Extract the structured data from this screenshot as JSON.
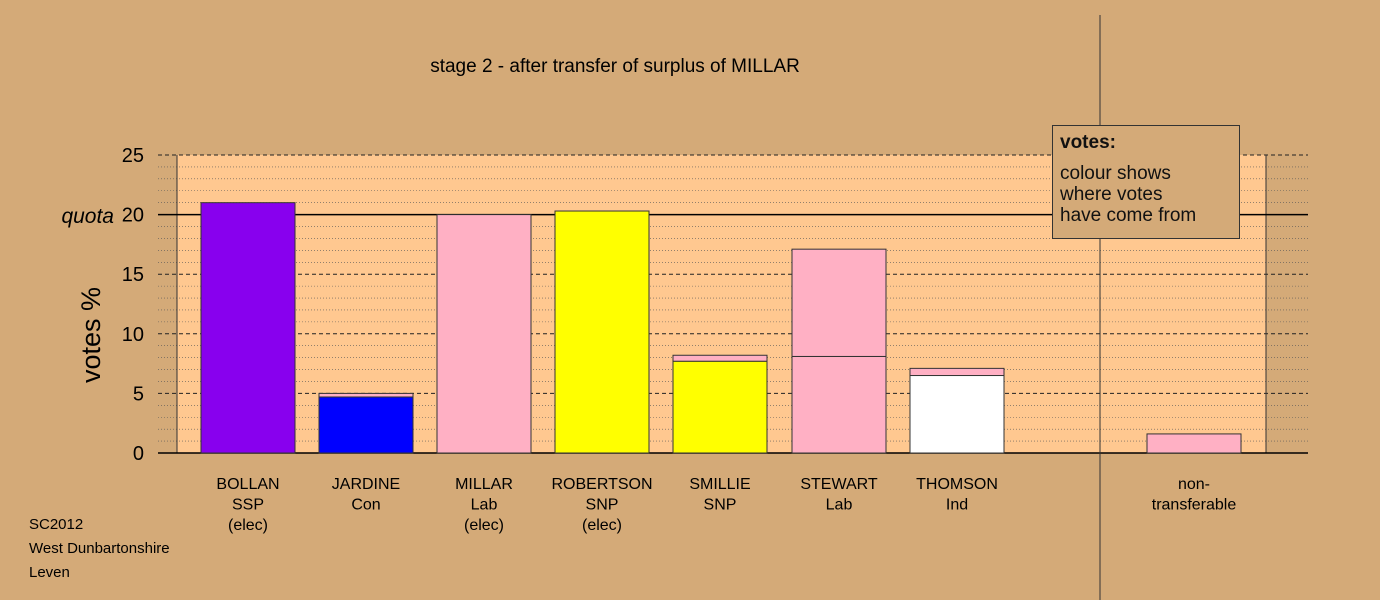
{
  "chart_data": {
    "type": "bar",
    "title": "stage 2 - after transfer of surplus of MILLAR",
    "ylabel": "votes %",
    "ylim": [
      0,
      25
    ],
    "yticks": [
      0,
      5,
      10,
      15,
      20,
      25
    ],
    "quota": 20,
    "quota_label": "quota",
    "candidates": [
      {
        "name": "BOLLAN",
        "party": "SSP",
        "status": "(elec)",
        "segments": [
          {
            "value": 21.0,
            "color": "#8800ee"
          }
        ]
      },
      {
        "name": "JARDINE",
        "party": "Con",
        "status": "",
        "segments": [
          {
            "value": 4.7,
            "color": "#0000ff"
          },
          {
            "value": 0.3,
            "color": "#ffb0c4"
          }
        ]
      },
      {
        "name": "MILLAR",
        "party": "Lab",
        "status": "(elec)",
        "segments": [
          {
            "value": 20.0,
            "color": "#ffb0c4"
          }
        ]
      },
      {
        "name": "ROBERTSON",
        "party": "SNP",
        "status": "(elec)",
        "segments": [
          {
            "value": 20.3,
            "color": "#ffff00"
          }
        ]
      },
      {
        "name": "SMILLIE",
        "party": "SNP",
        "status": "",
        "segments": [
          {
            "value": 7.7,
            "color": "#ffff00"
          },
          {
            "value": 0.5,
            "color": "#ffb0c4"
          }
        ]
      },
      {
        "name": "STEWART",
        "party": "Lab",
        "status": "",
        "segments": [
          {
            "value": 8.1,
            "color": "#ffb0c4"
          },
          {
            "value": 9.0,
            "color": "#ffb0c4"
          }
        ]
      },
      {
        "name": "THOMSON",
        "party": "Ind",
        "status": "",
        "segments": [
          {
            "value": 6.5,
            "color": "#ffffff"
          },
          {
            "value": 0.6,
            "color": "#ffb0c4"
          }
        ]
      }
    ],
    "nontransferable": {
      "label1": "non-",
      "label2": "transferable",
      "value": 1.6,
      "color": "#ffb0c4"
    },
    "grid": true
  },
  "legend": {
    "title": "votes:",
    "line1": "colour shows",
    "line2": "where votes",
    "line3": "have come from"
  },
  "footer": {
    "line1": "SC2012",
    "line2": "West Dunbartonshire",
    "line3": "Leven"
  },
  "colors": {
    "background": "#d4aa78",
    "plot_background": "#ffc890"
  }
}
